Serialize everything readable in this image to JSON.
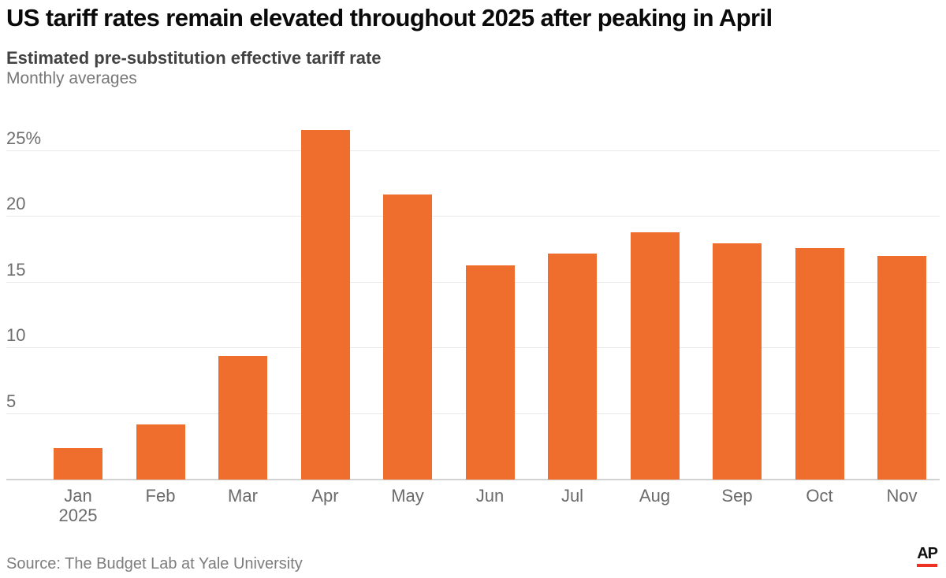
{
  "header": {
    "title": "US tariff rates remain elevated throughout 2025 after peaking in April",
    "subtitle": "Estimated pre-substitution effective tariff rate",
    "note": "Monthly averages"
  },
  "chart_data": {
    "type": "bar",
    "title": "Estimated pre-substitution effective tariff rate",
    "subtitle": "Monthly averages",
    "categories": [
      "Jan",
      "Feb",
      "Mar",
      "Apr",
      "May",
      "Jun",
      "Jul",
      "Aug",
      "Sep",
      "Oct",
      "Nov"
    ],
    "first_category_year": "2025",
    "values": [
      2.4,
      4.2,
      9.4,
      26.6,
      21.7,
      16.3,
      17.2,
      18.8,
      18.0,
      17.6,
      17.0
    ],
    "unit": "%",
    "xlabel": "",
    "ylabel": "",
    "ylim": [
      0,
      27.5
    ],
    "y_ticks": [
      {
        "value": 5,
        "label": "5"
      },
      {
        "value": 10,
        "label": "10"
      },
      {
        "value": 15,
        "label": "15"
      },
      {
        "value": 20,
        "label": "20"
      },
      {
        "value": 25,
        "label": "25%"
      }
    ],
    "grid": "horizontal",
    "legend": "none",
    "bar_color": "#EF6E2E"
  },
  "footer": {
    "source": "Source: The Budget Lab at Yale University",
    "logo_text": "AP",
    "logo_underline_color": "#ED3124"
  }
}
